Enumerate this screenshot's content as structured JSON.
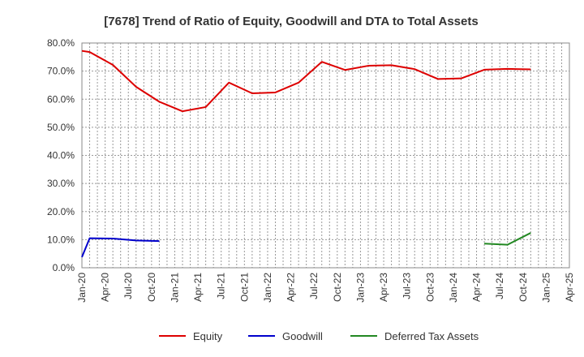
{
  "chart_data": {
    "type": "line",
    "title": "[7678]  Trend of Ratio of Equity, Goodwill and DTA to Total Assets",
    "x_tick_labels": [
      "Jan-20",
      "Apr-20",
      "Jul-20",
      "Oct-20",
      "Jan-21",
      "Apr-21",
      "Jul-21",
      "Oct-21",
      "Jan-22",
      "Apr-22",
      "Jul-22",
      "Oct-22",
      "Jan-23",
      "Apr-23",
      "Jul-23",
      "Oct-23",
      "Jan-24",
      "Apr-24",
      "Jul-24",
      "Oct-24",
      "Jan-25",
      "Apr-25"
    ],
    "y_tick_labels": [
      "0.0%",
      "10.0%",
      "20.0%",
      "30.0%",
      "40.0%",
      "50.0%",
      "60.0%",
      "70.0%",
      "80.0%"
    ],
    "ylim": [
      0,
      80
    ],
    "y_unit": "%",
    "grid": true,
    "legend_position": "bottom",
    "colors": {
      "Equity": "#dd0000",
      "Goodwill": "#0000cc",
      "Deferred Tax Assets": "#228822"
    },
    "series": [
      {
        "name": "Equity",
        "points": [
          {
            "x": "Jan-20",
            "y": 77.2
          },
          {
            "x": "Feb-20",
            "y": 76.8
          },
          {
            "x": "May-20",
            "y": 72.2
          },
          {
            "x": "Aug-20",
            "y": 64.4
          },
          {
            "x": "Nov-20",
            "y": 59.1
          },
          {
            "x": "Feb-21",
            "y": 55.7
          },
          {
            "x": "May-21",
            "y": 57.2
          },
          {
            "x": "Aug-21",
            "y": 65.9
          },
          {
            "x": "Nov-21",
            "y": 62.1
          },
          {
            "x": "Feb-22",
            "y": 62.4
          },
          {
            "x": "May-22",
            "y": 65.9
          },
          {
            "x": "Aug-22",
            "y": 73.3
          },
          {
            "x": "Nov-22",
            "y": 70.4
          },
          {
            "x": "Feb-23",
            "y": 71.9
          },
          {
            "x": "May-23",
            "y": 72.1
          },
          {
            "x": "Aug-23",
            "y": 70.7
          },
          {
            "x": "Nov-23",
            "y": 67.2
          },
          {
            "x": "Feb-24",
            "y": 67.4
          },
          {
            "x": "May-24",
            "y": 70.5
          },
          {
            "x": "Aug-24",
            "y": 70.8
          },
          {
            "x": "Nov-24",
            "y": 70.6
          }
        ]
      },
      {
        "name": "Goodwill",
        "points": [
          {
            "x": "Jan-20",
            "y": 3.8
          },
          {
            "x": "Feb-20",
            "y": 10.5
          },
          {
            "x": "May-20",
            "y": 10.4
          },
          {
            "x": "Aug-20",
            "y": 9.7
          },
          {
            "x": "Nov-20",
            "y": 9.5
          }
        ]
      },
      {
        "name": "Deferred Tax Assets",
        "points": [
          {
            "x": "May-24",
            "y": 8.6
          },
          {
            "x": "Aug-24",
            "y": 8.2
          },
          {
            "x": "Nov-24",
            "y": 12.4
          }
        ]
      }
    ]
  }
}
